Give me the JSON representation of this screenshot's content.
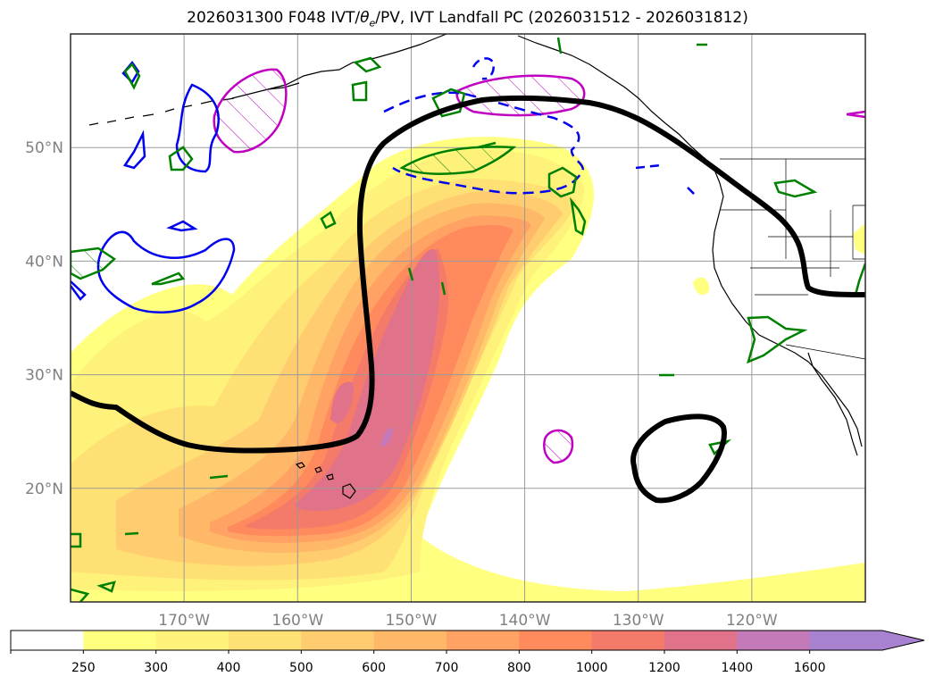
{
  "title": {
    "prefix": "2026031300 F048 IVT/",
    "theta": "θ",
    "sub": "e",
    "suffix": "/PV, IVT Landfall PC (2026031512 - 2026031812)"
  },
  "map": {
    "lon_range": [
      -180,
      -110
    ],
    "lat_range": [
      10,
      60
    ],
    "lat_ticks": [
      {
        "value": 50,
        "label": "50°N"
      },
      {
        "value": 40,
        "label": "40°N"
      },
      {
        "value": 30,
        "label": "30°N"
      },
      {
        "value": 20,
        "label": "20°N"
      }
    ],
    "lon_ticks": [
      {
        "value": -170,
        "label": "170°W"
      },
      {
        "value": -160,
        "label": "160°W"
      },
      {
        "value": -150,
        "label": "150°W"
      },
      {
        "value": -140,
        "label": "140°W"
      },
      {
        "value": -130,
        "label": "130°W"
      },
      {
        "value": -120,
        "label": "120°W"
      }
    ],
    "gridlines": true,
    "contour_colors": {
      "landfall_pc": "#000000",
      "pv": "#0000ee",
      "theta_e": "#008000",
      "magenta": "#c000c0"
    }
  },
  "colorbar": {
    "levels": [
      "250",
      "300",
      "400",
      "500",
      "600",
      "700",
      "800",
      "1000",
      "1200",
      "1400",
      "1600"
    ],
    "colors": [
      "#ffff80",
      "#fff27a",
      "#ffe074",
      "#ffcd6f",
      "#ffb868",
      "#ffa263",
      "#ff8a5e",
      "#f47a6a",
      "#e0728a",
      "#c47ab8",
      "#a882d0"
    ],
    "under_color": "#ffffff",
    "extend": "max"
  }
}
